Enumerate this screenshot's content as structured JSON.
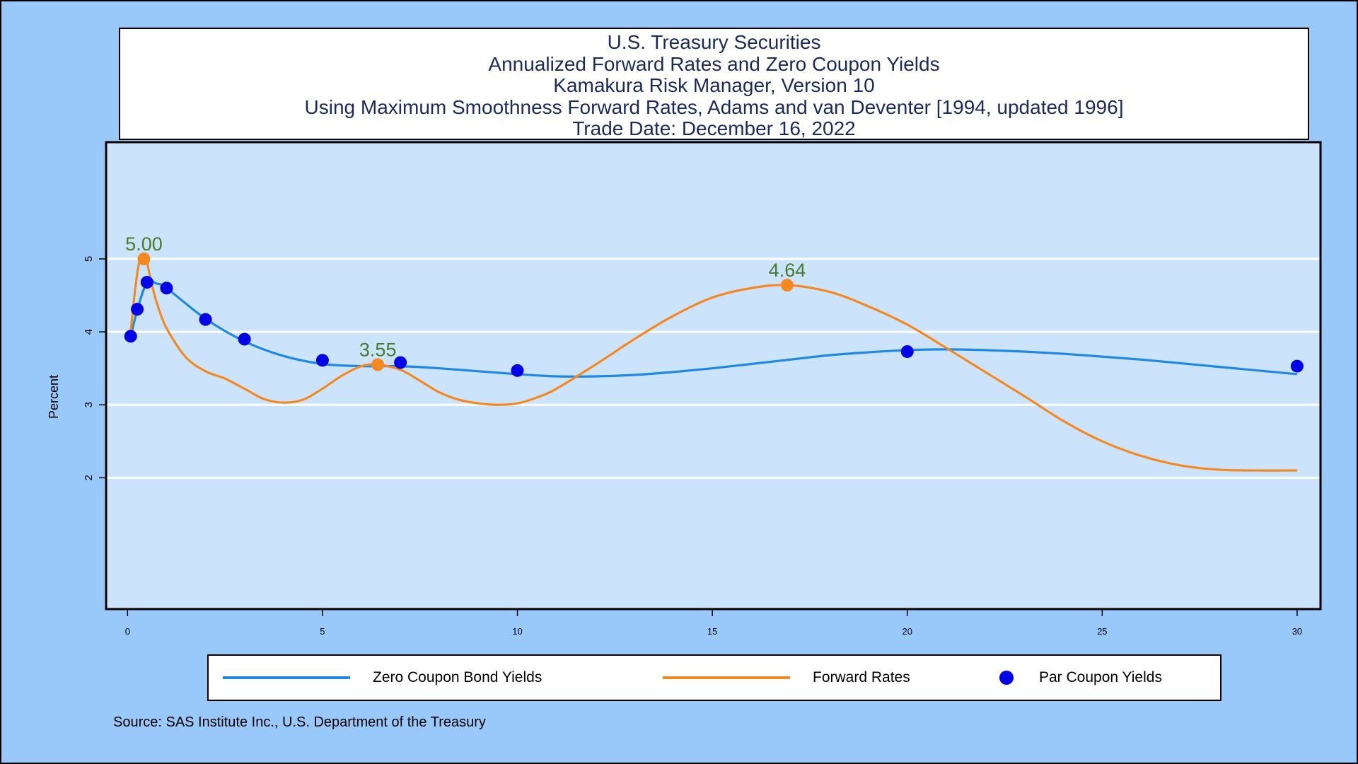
{
  "title_lines": [
    "U.S. Treasury Securities",
    "Annualized Forward Rates and Zero Coupon Yields",
    "Kamakura Risk Manager, Version 10",
    "Using Maximum Smoothness Forward Rates, Adams and van Deventer [1994, updated 1996]",
    "Trade Date:  December 16, 2022"
  ],
  "colors": {
    "background": "#99c9fb",
    "plot_area": "#cce4fb",
    "zero_coupon": "#1e88e5",
    "forward": "#f5891f",
    "par": "#0000e6",
    "label": "#4a7a2e"
  },
  "legend": {
    "zero_coupon": "Zero Coupon Bond Yields",
    "forward": "Forward Rates",
    "par": "Par Coupon Yields"
  },
  "source": "Source: SAS Institute Inc., U.S. Department of the Treasury",
  "chart_data": {
    "type": "line",
    "xlabel": "",
    "ylabel": "Percent",
    "xlim": [
      -0.55,
      30.6
    ],
    "ylim": [
      0.2,
      6.6
    ],
    "xticks": [
      0,
      5,
      10,
      15,
      20,
      25,
      30
    ],
    "yticks": [
      2,
      3,
      4,
      5
    ],
    "grid": "horizontal",
    "legend_position": "bottom",
    "series": [
      {
        "name": "Zero Coupon Bond Yields",
        "kind": "line",
        "x": [
          0.08,
          0.25,
          0.5,
          0.75,
          1,
          2,
          3,
          4,
          5,
          6,
          7,
          8,
          9,
          10,
          11,
          12,
          13,
          14,
          15,
          16,
          17,
          18,
          19,
          20,
          21,
          22,
          23,
          24,
          25,
          26,
          27,
          28,
          29,
          30
        ],
        "y": [
          3.93,
          4.3,
          4.68,
          4.66,
          4.6,
          4.18,
          3.87,
          3.67,
          3.56,
          3.53,
          3.53,
          3.5,
          3.46,
          3.42,
          3.39,
          3.39,
          3.41,
          3.45,
          3.5,
          3.56,
          3.62,
          3.68,
          3.72,
          3.75,
          3.76,
          3.75,
          3.73,
          3.7,
          3.66,
          3.62,
          3.57,
          3.52,
          3.47,
          3.42
        ]
      },
      {
        "name": "Forward Rates",
        "kind": "line",
        "x": [
          0.08,
          0.2,
          0.3,
          0.42,
          0.5,
          0.6,
          0.75,
          1,
          1.5,
          2,
          2.5,
          3,
          3.5,
          4,
          4.5,
          5,
          5.5,
          6,
          6.42,
          7,
          7.5,
          8,
          8.5,
          9,
          9.5,
          10,
          10.5,
          11,
          12,
          13,
          14,
          15,
          16,
          16.92,
          18,
          19,
          20,
          21,
          22,
          23,
          24,
          25,
          26,
          27,
          28,
          29,
          30
        ],
        "y": [
          4.0,
          4.6,
          4.95,
          5.0,
          4.95,
          4.7,
          4.4,
          4.05,
          3.65,
          3.46,
          3.36,
          3.22,
          3.08,
          3.03,
          3.07,
          3.22,
          3.4,
          3.53,
          3.55,
          3.48,
          3.33,
          3.17,
          3.07,
          3.02,
          3.0,
          3.02,
          3.1,
          3.22,
          3.55,
          3.9,
          4.22,
          4.47,
          4.6,
          4.64,
          4.55,
          4.35,
          4.1,
          3.78,
          3.45,
          3.12,
          2.78,
          2.5,
          2.3,
          2.17,
          2.11,
          2.1,
          2.1
        ]
      },
      {
        "name": "Par Coupon Yields",
        "kind": "scatter",
        "x": [
          0.08,
          0.25,
          0.5,
          1,
          2,
          3,
          5,
          7,
          10,
          20,
          30
        ],
        "y": [
          3.94,
          4.31,
          4.68,
          4.6,
          4.17,
          3.9,
          3.61,
          3.58,
          3.47,
          3.73,
          3.53
        ]
      }
    ],
    "annotations": [
      {
        "x": 0.42,
        "y": 5.0,
        "text": "5.00"
      },
      {
        "x": 6.42,
        "y": 3.55,
        "text": "3.55"
      },
      {
        "x": 16.92,
        "y": 4.64,
        "text": "4.64"
      }
    ]
  }
}
